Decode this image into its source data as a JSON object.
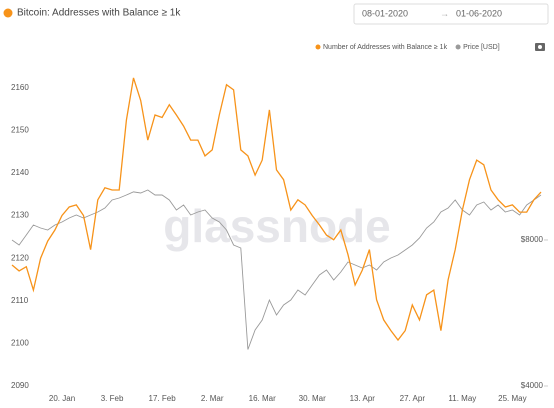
{
  "header": {
    "date_from": "08-01-2020",
    "date_to": "01-06-2020"
  },
  "chart_data": {
    "type": "line",
    "title": "Bitcoin: Addresses with Balance ≥ 1k",
    "watermark": "glassnode",
    "categories": [
      null,
      null,
      null,
      null,
      null,
      null,
      null,
      "20. Jan",
      null,
      null,
      null,
      null,
      null,
      null,
      "3. Feb",
      null,
      null,
      null,
      null,
      null,
      null,
      "17. Feb",
      null,
      null,
      null,
      null,
      null,
      null,
      "2. Mar",
      null,
      null,
      null,
      null,
      null,
      null,
      "16. Mar",
      null,
      null,
      null,
      null,
      null,
      null,
      "30. Mar",
      null,
      null,
      null,
      null,
      null,
      null,
      "13. Apr",
      null,
      null,
      null,
      null,
      null,
      null,
      "27. Apr",
      null,
      null,
      null,
      null,
      null,
      null,
      "11. May",
      null,
      null,
      null,
      null,
      null,
      null,
      "25. May",
      null,
      null,
      null,
      null
    ],
    "series": [
      {
        "name": "Number of Addresses with Balance ≥ 1k",
        "color": "#f7931a",
        "values": [
          2118.4,
          2117,
          2118,
          2112.5,
          2120,
          2124,
          2126.6,
          2130,
          2132,
          2132.5,
          2130,
          2122,
          2133.7,
          2136.5,
          2136,
          2136,
          2152.4,
          2162.3,
          2157,
          2147.7,
          2153.6,
          2153,
          2156,
          2153.6,
          2151,
          2147.7,
          2147.7,
          2144,
          2145.4,
          2153.6,
          2160.7,
          2159.5,
          2145.4,
          2144,
          2139.5,
          2143,
          2154.8,
          2140.7,
          2138.4,
          2131.3,
          2133.7,
          2132.5,
          2130,
          2127.8,
          2125.4,
          2124.3,
          2126.6,
          2120.8,
          2113.7,
          2117.2,
          2122,
          2110.2,
          2105.5,
          2103,
          2100.8,
          2103,
          2109,
          2105.5,
          2111.4,
          2112.5,
          2103,
          2114.9,
          2122,
          2131.3,
          2138.4,
          2143,
          2141.9,
          2136,
          2133.7,
          2132,
          2132.5,
          2130.8,
          2130.8,
          2133.7,
          2135.5
        ]
      },
      {
        "name": "Price [USD]",
        "color": "#9a9a9a",
        "axis": "y2",
        "values": [
          8000,
          7863,
          8137,
          8411,
          8329,
          8274,
          8411,
          8493,
          8603,
          8685,
          8603,
          8685,
          8767,
          8877,
          9096,
          9151,
          9233,
          9316,
          9288,
          9370,
          9233,
          9233,
          9096,
          8822,
          8959,
          8685,
          8767,
          8822,
          8603,
          8493,
          8274,
          7863,
          7781,
          5000,
          5534,
          5808,
          6356,
          5945,
          6219,
          6356,
          6630,
          6493,
          6767,
          7041,
          7178,
          6904,
          7123,
          7397,
          7315,
          7233,
          7315,
          7178,
          7397,
          7507,
          7589,
          7726,
          7863,
          8055,
          8329,
          8493,
          8767,
          8877,
          9096,
          8822,
          8685,
          8959,
          9041,
          8822,
          8959,
          8767,
          8822,
          8685,
          8959,
          9096,
          9233
        ]
      }
    ],
    "ylim": [
      2090,
      2166.5
    ],
    "yticks": [
      2090,
      2100,
      2110,
      2120,
      2130,
      2140,
      2150,
      2160
    ],
    "y2lim": [
      4000,
      12930
    ],
    "y2ticks": [
      {
        "value": 4000,
        "label": "$4000"
      },
      {
        "value": 8000,
        "label": "$8000"
      }
    ],
    "grid": false
  }
}
